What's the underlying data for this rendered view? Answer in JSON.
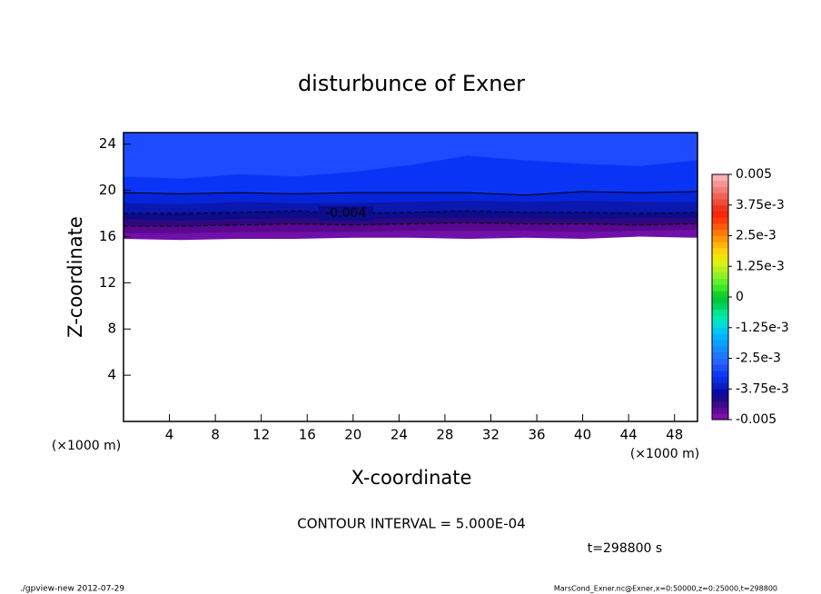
{
  "chart_data": {
    "type": "contour",
    "title": "disturbunce of Exner",
    "xlabel": "X-coordinate",
    "ylabel": "Z-coordinate",
    "x_unit_left": "(×1000 m)",
    "x_unit_right": "(×1000 m)",
    "contour_interval": "CONTOUR INTERVAL = 5.000E-04",
    "time_label": "t=298800 s",
    "footer_left": "./gpview-new  2012-07-29",
    "footer_right": "MarsCond_Exner.nc@Exner,x=0:50000,z=0:25000,t=298800",
    "xlim": [
      0,
      50
    ],
    "ylim": [
      0,
      25
    ],
    "xticks": [
      4,
      8,
      12,
      16,
      20,
      24,
      28,
      32,
      36,
      40,
      44,
      48
    ],
    "yticks": [
      4,
      8,
      12,
      16,
      20,
      24
    ],
    "x": [
      0,
      5,
      10,
      15,
      20,
      25,
      30,
      35,
      40,
      45,
      50
    ],
    "color_above": "#1e4bff",
    "contours": [
      {
        "level": -0.00325,
        "color": "#0a34f5",
        "z": [
          21.2,
          21.0,
          21.4,
          21.2,
          21.6,
          22.2,
          23.0,
          22.6,
          22.3,
          22.1,
          22.6
        ]
      },
      {
        "level": -0.0035,
        "color": "#0624d8",
        "line": "solid",
        "z": [
          19.8,
          19.7,
          19.8,
          19.7,
          19.8,
          19.8,
          19.8,
          19.6,
          19.9,
          19.8,
          19.9
        ]
      },
      {
        "level": -0.00375,
        "color": "#0a18b0",
        "z": [
          18.9,
          18.8,
          19.0,
          18.9,
          18.9,
          19.0,
          19.1,
          19.0,
          19.1,
          19.0,
          19.0
        ]
      },
      {
        "level": -0.004,
        "color": "#0c0c8c",
        "line": "dashed",
        "labeled": true,
        "z": [
          18.0,
          18.0,
          18.1,
          18.2,
          18.0,
          18.1,
          18.2,
          18.1,
          18.1,
          18.0,
          18.1
        ]
      },
      {
        "level": -0.00425,
        "color": "#30087e",
        "z": [
          17.5,
          17.4,
          17.5,
          17.6,
          17.5,
          17.6,
          17.6,
          17.6,
          17.5,
          17.6,
          17.6
        ]
      },
      {
        "level": -0.0045,
        "color": "#5a0890",
        "line": "dashed",
        "z": [
          16.9,
          16.9,
          17.0,
          17.1,
          17.0,
          17.1,
          17.2,
          17.1,
          17.1,
          17.0,
          17.1
        ]
      },
      {
        "level": -0.00475,
        "color": "#7010a8",
        "z": [
          16.3,
          16.3,
          16.4,
          16.4,
          16.4,
          16.5,
          16.5,
          16.5,
          16.4,
          16.5,
          16.6
        ]
      }
    ],
    "mask_below": [
      15.8,
      15.7,
      15.8,
      15.8,
      15.9,
      15.9,
      15.8,
      15.9,
      15.8,
      16.0,
      15.9
    ],
    "colorbar": {
      "lim": [
        -0.005,
        0.005
      ],
      "colors": [
        "#7a12a8",
        "#5e0a96",
        "#3c0a8a",
        "#1a0a8c",
        "#0a0aa8",
        "#0a1ec8",
        "#0a2ee0",
        "#0a3cf5",
        "#1e50ff",
        "#2864ff",
        "#1e78ff",
        "#148cff",
        "#0aa0ff",
        "#00b4ff",
        "#00c8f0",
        "#00dcdc",
        "#00e6b4",
        "#00e68c",
        "#00d264",
        "#00c83c",
        "#14d228",
        "#3ce628",
        "#64f028",
        "#8cf028",
        "#b4f01e",
        "#dcf014",
        "#f0e60a",
        "#ffd20a",
        "#ffb40a",
        "#ff960a",
        "#ff780a",
        "#ff5a0a",
        "#ff3c0a",
        "#f5280a",
        "#f0321e",
        "#f04b3c",
        "#f0645a",
        "#f07d78",
        "#f59696",
        "#faafaf"
      ],
      "ticks": [
        0.005,
        {
          "value": 0.00375,
          "label": "3.75e-3"
        },
        {
          "value": 0.0025,
          "label": "2.5e-3"
        },
        {
          "value": 0.00125,
          "label": "1.25e-3"
        },
        0,
        {
          "value": -0.00125,
          "label": "-1.25e-3"
        },
        {
          "value": -0.0025,
          "label": "-2.5e-3"
        },
        {
          "value": -0.00375,
          "label": "-3.75e-3"
        },
        -0.005
      ]
    }
  }
}
